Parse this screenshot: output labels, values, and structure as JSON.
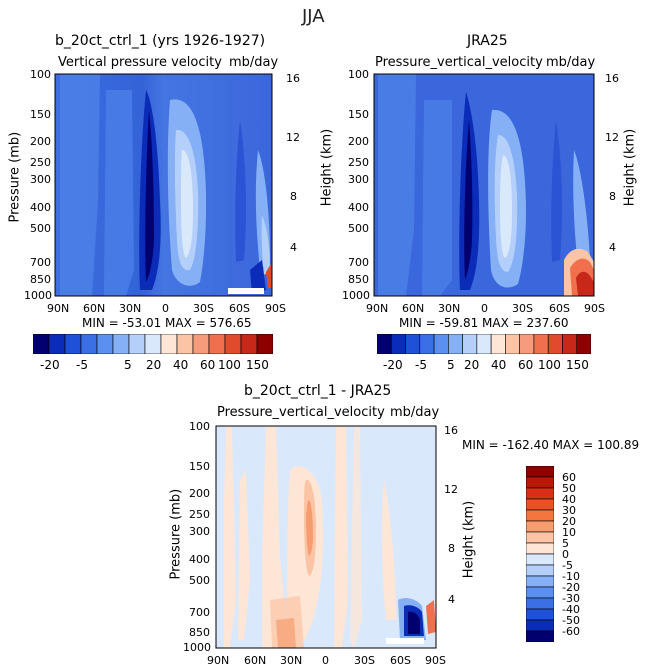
{
  "page_title": "JJA",
  "panels": [
    {
      "id": "model",
      "title": "b_20ct_ctrl_1 (yrs 1926-1927)",
      "left_label": "Vertical pressure velocity",
      "right_label": "mb/day",
      "min_max": "MIN = -53.01   MAX = 576.65"
    },
    {
      "id": "obs",
      "title": "JRA25",
      "left_label": "Pressure_vertical_velocity",
      "right_label": "mb/day",
      "min_max": "MIN = -59.81   MAX = 237.60"
    },
    {
      "id": "diff",
      "title": "b_20ct_ctrl_1 - JRA25",
      "left_label": "Pressure_vertical_velocity",
      "right_label": "mb/day",
      "min_max": "MIN = -162.40   MAX = 100.89"
    }
  ],
  "axes": {
    "ylabel": "Pressure (mb)",
    "y2label": "Height (km)",
    "pressure_ticks": [
      "100",
      "150",
      "200",
      "250",
      "300",
      "400",
      "500",
      "700",
      "850",
      "1000"
    ],
    "height_ticks": [
      "16",
      "12",
      "8",
      "4"
    ],
    "lat_ticks": [
      "90N",
      "60N",
      "30N",
      "0",
      "30S",
      "60S",
      "90S"
    ]
  },
  "colorbar_top": {
    "labels": [
      "-20",
      "-5",
      "5",
      "20",
      "40",
      "60",
      "100",
      "150"
    ],
    "colors": [
      "#02006f",
      "#0b2cb8",
      "#1e50d8",
      "#3a6fe6",
      "#5b8ff0",
      "#86b0f5",
      "#b4d0fa",
      "#dae8fc",
      "#fde6d6",
      "#fbc4a5",
      "#f79c7a",
      "#f0704e",
      "#e24a2c",
      "#c8281a",
      "#8e0000"
    ]
  },
  "colorbar_diff": {
    "labels": [
      "60",
      "50",
      "40",
      "30",
      "20",
      "10",
      "5",
      "0",
      "-5",
      "-10",
      "-20",
      "-30",
      "-40",
      "-50",
      "-60"
    ],
    "colors": [
      "#8e0000",
      "#b81808",
      "#d83016",
      "#ea5026",
      "#f3763c",
      "#f79c6e",
      "#fbc4a5",
      "#fde6d6",
      "#dae8fc",
      "#b4d0fa",
      "#86b0f5",
      "#5b8ff0",
      "#3a6fe6",
      "#1e50d8",
      "#0b2cb8",
      "#02006f"
    ]
  },
  "chart_data": [
    {
      "type": "heatmap",
      "title": "b_20ct_ctrl_1 (yrs 1926-1927)",
      "variable": "Vertical pressure velocity (mb/day)",
      "x": [
        "90N",
        "60N",
        "30N",
        "0",
        "30S",
        "60S",
        "90S"
      ],
      "y_pressure_mb": [
        100,
        150,
        200,
        250,
        300,
        400,
        500,
        700,
        850,
        1000
      ],
      "min": -53.01,
      "max": 576.65
    },
    {
      "type": "heatmap",
      "title": "JRA25",
      "variable": "Pressure_vertical_velocity (mb/day)",
      "x": [
        "90N",
        "60N",
        "30N",
        "0",
        "30S",
        "60S",
        "90S"
      ],
      "y_pressure_mb": [
        100,
        150,
        200,
        250,
        300,
        400,
        500,
        700,
        850,
        1000
      ],
      "min": -59.81,
      "max": 237.6
    },
    {
      "type": "heatmap",
      "title": "b_20ct_ctrl_1 - JRA25",
      "variable": "Pressure_vertical_velocity (mb/day)",
      "x": [
        "90N",
        "60N",
        "30N",
        "0",
        "30S",
        "60S",
        "90S"
      ],
      "y_pressure_mb": [
        100,
        150,
        200,
        250,
        300,
        400,
        500,
        700,
        850,
        1000
      ],
      "min": -162.4,
      "max": 100.89
    }
  ]
}
